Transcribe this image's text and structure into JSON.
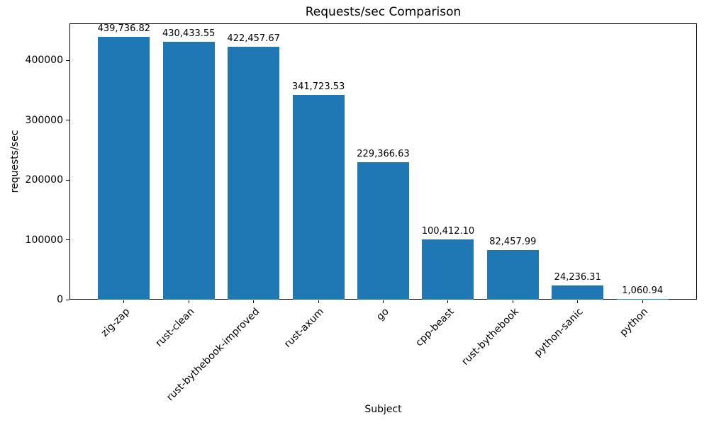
{
  "chart_data": {
    "type": "bar",
    "title": "Requests/sec Comparison",
    "xlabel": "Subject",
    "ylabel": "requests/sec",
    "categories": [
      "zig-zap",
      "rust-clean",
      "rust-bythebook-improved",
      "rust-axum",
      "go",
      "cpp-beast",
      "rust-bythebook",
      "python-sanic",
      "python"
    ],
    "values": [
      439736.82,
      430433.55,
      422457.67,
      341723.53,
      229366.63,
      100412.1,
      82457.99,
      24236.31,
      1060.94
    ],
    "value_labels": [
      "439,736.82",
      "430,433.55",
      "422,457.67",
      "341,723.53",
      "229,366.63",
      "100,412.10",
      "82,457.99",
      "24,236.31",
      "1,060.94"
    ],
    "y_ticks": [
      0,
      100000,
      200000,
      300000,
      400000
    ],
    "ylim": [
      0,
      461724
    ],
    "bar_color": "#1f77b4",
    "bar_width_fraction": 0.8,
    "grid": false,
    "legend_position": "none"
  }
}
